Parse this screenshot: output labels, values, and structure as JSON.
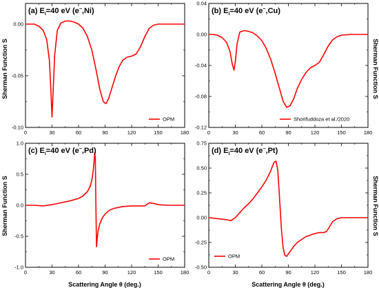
{
  "figure": {
    "xlabel": "Scattering Angle θ (deg.)",
    "ylabel": "Sherman Function S"
  },
  "chart_data": [
    {
      "type": "line",
      "panel_label": "(a)",
      "title_main": "E",
      "title_sub": "i",
      "title_rest": "=40 eV (e",
      "title_sup": "−",
      "title_end": ",Ni)",
      "xlim": [
        0,
        180
      ],
      "ylim": [
        -0.1,
        0.02
      ],
      "xticks": [
        0,
        30,
        60,
        90,
        120,
        150,
        180
      ],
      "yticks": [
        0.0,
        -0.05,
        -0.1
      ],
      "ytick_labels": [
        "0.00",
        "-0.05",
        "-0.10"
      ],
      "ylabel_side": "left",
      "legend_position": "bottom-right",
      "series": [
        {
          "name": "OPM",
          "color": "#ff0000",
          "x": [
            0,
            5,
            10,
            15,
            20,
            24,
            27,
            28.5,
            30,
            31.5,
            33,
            36,
            40,
            45,
            50,
            55,
            60,
            65,
            70,
            75,
            80,
            84,
            88,
            91,
            94,
            98,
            102,
            106,
            110,
            115,
            120,
            125,
            130,
            135,
            140,
            145,
            150,
            155,
            160,
            170,
            180
          ],
          "y": [
            0.0,
            0.0,
            0.0,
            -0.002,
            -0.006,
            -0.015,
            -0.035,
            -0.06,
            -0.09,
            -0.06,
            -0.03,
            -0.006,
            0.001,
            0.003,
            0.003,
            0.002,
            0.0,
            -0.004,
            -0.012,
            -0.025,
            -0.045,
            -0.063,
            -0.075,
            -0.077,
            -0.072,
            -0.061,
            -0.05,
            -0.041,
            -0.035,
            -0.032,
            -0.031,
            -0.029,
            -0.022,
            -0.012,
            -0.004,
            -0.001,
            0.0,
            0.0,
            0.0,
            0.0,
            0.0
          ]
        }
      ]
    },
    {
      "type": "line",
      "panel_label": "(b)",
      "title_main": "E",
      "title_sub": "i",
      "title_rest": "=40 eV (e",
      "title_sup": "−",
      "title_end": ",Cu)",
      "xlim": [
        0,
        180
      ],
      "ylim": [
        -0.12,
        0.04
      ],
      "xticks": [
        0,
        30,
        60,
        90,
        120,
        150,
        180
      ],
      "yticks": [
        0.04,
        0.0,
        -0.04,
        -0.08,
        -0.12
      ],
      "ytick_labels": [
        "0.04",
        "0.00",
        "-0.04",
        "-0.08",
        "-0.12"
      ],
      "ylabel_side": "right",
      "legend_position": "bottom-right",
      "series": [
        {
          "name": "Shorifuddoza et al./2020",
          "color": "#ff0000",
          "x": [
            0,
            5,
            10,
            15,
            20,
            24,
            26.5,
            28.5,
            30,
            32,
            35,
            40,
            45,
            50,
            55,
            60,
            65,
            70,
            75,
            80,
            84,
            88,
            92,
            96,
            100,
            105,
            110,
            115,
            120,
            125,
            130,
            135,
            140,
            145,
            150,
            160,
            170,
            180
          ],
          "y": [
            0.0,
            0.0,
            -0.001,
            -0.004,
            -0.01,
            -0.022,
            -0.038,
            -0.046,
            -0.035,
            -0.012,
            0.003,
            0.005,
            0.004,
            0.002,
            -0.002,
            -0.008,
            -0.018,
            -0.032,
            -0.05,
            -0.07,
            -0.086,
            -0.094,
            -0.092,
            -0.083,
            -0.07,
            -0.058,
            -0.049,
            -0.043,
            -0.04,
            -0.036,
            -0.026,
            -0.015,
            -0.007,
            -0.003,
            -0.001,
            0.0,
            0.0,
            0.0
          ]
        }
      ]
    },
    {
      "type": "line",
      "panel_label": "(c)",
      "title_main": "E",
      "title_sub": "i",
      "title_rest": "=40 eV (e",
      "title_sup": "−",
      "title_end": ",Pd)",
      "xlim": [
        0,
        180
      ],
      "ylim": [
        -1.0,
        1.0
      ],
      "xticks": [
        0,
        30,
        60,
        90,
        120,
        150,
        180
      ],
      "yticks": [
        1.0,
        0.5,
        0.0,
        -0.5,
        -1.0
      ],
      "ytick_labels": [
        "1.0",
        "0.5",
        "0.0",
        "-0.5",
        "-1.0"
      ],
      "ylabel_side": "left",
      "legend_position": "bottom-right",
      "series": [
        {
          "name": "OPM",
          "color": "#ff0000",
          "x": [
            0,
            10,
            20,
            30,
            40,
            50,
            60,
            65,
            70,
            73,
            75,
            76.5,
            77.5,
            78.3,
            79,
            79.6,
            80.3,
            81,
            82,
            84,
            87,
            90,
            95,
            100,
            110,
            120,
            130,
            135,
            138,
            140,
            145,
            150,
            160,
            170,
            180
          ],
          "y": [
            0.0,
            0.0,
            -0.01,
            0.01,
            0.04,
            0.07,
            0.11,
            0.15,
            0.22,
            0.3,
            0.4,
            0.55,
            0.7,
            0.85,
            0.75,
            0.0,
            -0.67,
            -0.55,
            -0.42,
            -0.3,
            -0.2,
            -0.14,
            -0.08,
            -0.05,
            -0.02,
            -0.01,
            -0.01,
            -0.01,
            0.02,
            0.04,
            0.03,
            0.01,
            0.0,
            0.0,
            0.0
          ]
        }
      ]
    },
    {
      "type": "line",
      "panel_label": "(d)",
      "title_main": "E",
      "title_sub": "i",
      "title_rest": "=40 eV (e",
      "title_sup": "−",
      "title_end": ",Pt)",
      "xlim": [
        0,
        180
      ],
      "ylim": [
        -0.5,
        0.75
      ],
      "xticks": [
        0,
        30,
        60,
        90,
        120,
        150,
        180
      ],
      "yticks": [
        0.75,
        0.5,
        0.25,
        0.0,
        -0.25,
        -0.5
      ],
      "ytick_labels": [
        "0.75",
        "0.50",
        "0.25",
        "0.00",
        "-0.25",
        "-0.50"
      ],
      "ylabel_side": "right",
      "legend_position": "bottom-left",
      "series": [
        {
          "name": "OPM",
          "color": "#ff0000",
          "x": [
            0,
            10,
            20,
            25,
            30,
            35,
            40,
            45,
            50,
            55,
            60,
            65,
            70,
            72,
            74,
            76,
            78,
            80,
            82,
            84,
            86,
            88,
            92,
            96,
            100,
            110,
            120,
            125,
            130,
            133,
            136,
            140,
            145,
            150,
            160,
            170,
            180
          ],
          "y": [
            0.0,
            -0.01,
            -0.02,
            -0.03,
            0.0,
            0.05,
            0.1,
            0.14,
            0.19,
            0.25,
            0.31,
            0.38,
            0.47,
            0.52,
            0.56,
            0.57,
            0.48,
            0.2,
            -0.1,
            -0.3,
            -0.38,
            -0.39,
            -0.34,
            -0.29,
            -0.25,
            -0.19,
            -0.16,
            -0.15,
            -0.15,
            -0.14,
            -0.1,
            -0.04,
            -0.01,
            0.0,
            0.0,
            0.0,
            0.0
          ]
        }
      ]
    }
  ]
}
